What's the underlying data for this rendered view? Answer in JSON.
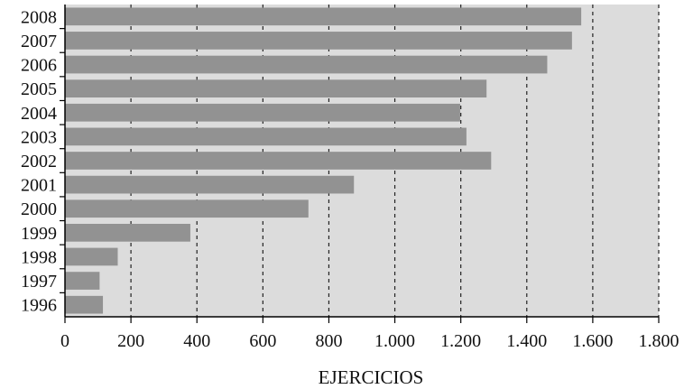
{
  "chart_data": {
    "type": "bar",
    "orientation": "horizontal",
    "categories": [
      "2008",
      "2007",
      "2006",
      "2005",
      "2004",
      "2003",
      "2002",
      "2001",
      "2000",
      "1999",
      "1998",
      "1997",
      "1996"
    ],
    "values": [
      1565,
      1537,
      1462,
      1278,
      1198,
      1217,
      1292,
      876,
      738,
      380,
      160,
      105,
      115
    ],
    "xlabel": "EJERCICIOS",
    "ylabel": "",
    "xlim": [
      0,
      1800
    ],
    "xticks": [
      0,
      200,
      400,
      600,
      800,
      1000,
      1200,
      1400,
      1600,
      1800
    ],
    "xtick_labels": [
      "0",
      "200",
      "400",
      "600",
      "800",
      "1.000",
      "1.200",
      "1.400",
      "1.600",
      "1.800"
    ],
    "grid": "vertical dashed",
    "colors": {
      "bar": "#929292",
      "plot_background": "#dcdcdc",
      "grid": "#222222",
      "axis": "#000000"
    }
  }
}
